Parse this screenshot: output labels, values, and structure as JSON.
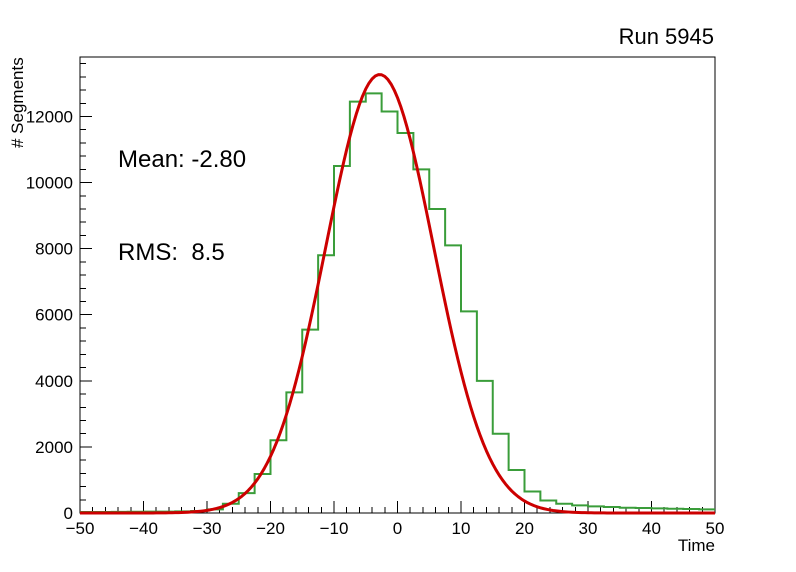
{
  "title": "Run 5945",
  "stats": {
    "mean": "Mean: -2.80",
    "rms": "RMS:  8.5"
  },
  "axes": {
    "x_label": "Time",
    "y_label": "# Segments"
  },
  "colors": {
    "histogram": "#3a9d3a",
    "fit": "#cc0000",
    "axis": "#000000",
    "text": "#000000",
    "background": "#ffffff"
  },
  "chart_data": {
    "type": "bar",
    "style": "step-histogram-with-gaussian-fit",
    "title": "Run 5945",
    "xlabel": "Time",
    "ylabel": "# Segments",
    "xlim": [
      -50,
      50
    ],
    "ylim": [
      0,
      13800
    ],
    "grid": false,
    "legend": "none",
    "x_ticks": [
      -50,
      -40,
      -30,
      -20,
      -10,
      0,
      10,
      20,
      30,
      40,
      50
    ],
    "x_tick_labels": [
      "−50",
      "−40",
      "−30",
      "−20",
      "−10",
      "0",
      "10",
      "20",
      "30",
      "40",
      "50"
    ],
    "x_minor_step": 2,
    "y_ticks": [
      0,
      2000,
      4000,
      6000,
      8000,
      10000,
      12000
    ],
    "y_tick_labels": [
      "0",
      "2000",
      "4000",
      "6000",
      "8000",
      "10000",
      "12000"
    ],
    "y_minor_step": 400,
    "bin_start": -50,
    "bin_width": 2.5,
    "bin_counts": [
      30,
      32,
      35,
      38,
      40,
      42,
      48,
      60,
      110,
      280,
      600,
      1180,
      2200,
      3650,
      5550,
      7800,
      10500,
      12450,
      12700,
      12150,
      11500,
      10400,
      9200,
      8100,
      6100,
      4000,
      2400,
      1300,
      650,
      380,
      280,
      230,
      200,
      180,
      160,
      150,
      140,
      130,
      120,
      110
    ],
    "histogram_color": "#3a9d3a",
    "fit": {
      "model": "gaussian",
      "amplitude": 13270,
      "mean": -2.8,
      "sigma": 8.5,
      "color": "#cc0000"
    },
    "annotations": [
      "Mean: -2.80",
      "RMS:  8.5"
    ]
  }
}
